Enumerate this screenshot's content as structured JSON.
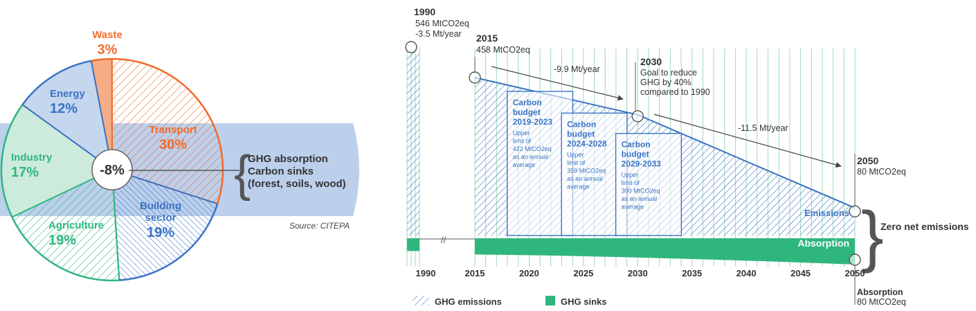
{
  "chart_data": [
    {
      "type": "pie",
      "title": "",
      "slices": [
        {
          "label": "Transport",
          "value": 30,
          "pct_label": "30%",
          "color": "#f26b2a"
        },
        {
          "label": "Building sector",
          "value": 19,
          "pct_label": "19%",
          "color": "#3b73c4"
        },
        {
          "label": "Agriculture",
          "value": 19,
          "pct_label": "19%",
          "color": "#2fb67e"
        },
        {
          "label": "Industry",
          "value": 17,
          "pct_label": "17%",
          "color": "#2fb67e"
        },
        {
          "label": "Energy",
          "value": 12,
          "pct_label": "12%",
          "color": "#3b73c4"
        },
        {
          "label": "Waste",
          "value": 3,
          "pct_label": "3%",
          "color": "#f26b2a"
        }
      ],
      "center_label": "-8%",
      "callout": [
        "GHG absorption",
        "Carbon sinks",
        "(forest, soils, wood)"
      ],
      "source": "Source: CITEPA"
    },
    {
      "type": "area",
      "title": "",
      "x_ticks": [
        1990,
        2015,
        2020,
        2025,
        2030,
        2035,
        2040,
        2045,
        2050
      ],
      "emissions": {
        "x": [
          1990,
          2015,
          2030,
          2050
        ],
        "y": [
          546,
          458,
          350,
          80
        ]
      },
      "absorption": {
        "x": [
          1990,
          2015,
          2050
        ],
        "y": [
          -45,
          -45,
          -80
        ]
      },
      "ylim": [
        -120,
        600
      ],
      "milestones": [
        {
          "year_label": "1990",
          "lines": [
            "546 MtCO2eq",
            "-3.5 Mt/year"
          ]
        },
        {
          "year_label": "2015",
          "lines": [
            "458 MtCO2eq"
          ]
        },
        {
          "year_label": "2030",
          "lines": [
            "Goal to reduce",
            "GHG by 40%",
            "compared to 1990"
          ]
        },
        {
          "year_label": "2050",
          "lines": [
            "80 MtCO2eq"
          ]
        }
      ],
      "rates": [
        "-9.9 Mt/year",
        "-11.5 Mt/year"
      ],
      "budgets": [
        {
          "x0": 2019,
          "x1": 2023,
          "top": 422,
          "title": [
            "Carbon",
            "budget",
            "2019-2023"
          ],
          "desc": [
            "Upper",
            "limit of",
            "422 MtCO2eq",
            "as an annual",
            "average"
          ]
        },
        {
          "x0": 2024,
          "x1": 2028,
          "top": 359,
          "title": [
            "Carbon",
            "budget",
            "2024-2028"
          ],
          "desc": [
            "Upper",
            "limit of",
            "359 MtCO2eq",
            "as an annual",
            "average"
          ]
        },
        {
          "x0": 2029,
          "x1": 2033,
          "top": 300,
          "title": [
            "Carbon",
            "budget",
            "2029-2033"
          ],
          "desc": [
            "Upper",
            "limit of",
            "300 MtCO2eq",
            "as an annual",
            "average"
          ]
        }
      ],
      "emissions_label": "Emissions",
      "absorption_label": "Absorption",
      "net_label": "Zero net emissions",
      "absorption_note": [
        "Absorption",
        "80 MtCO2eq"
      ],
      "legend": [
        {
          "label": "GHG emissions",
          "style": "hatch"
        },
        {
          "label": "GHG sinks",
          "style": "solid"
        }
      ],
      "colors": {
        "blue": "#3b73c4",
        "green": "#2fb67e",
        "grid": "#9ed9bd",
        "band": "#bcd0ec"
      }
    }
  ]
}
